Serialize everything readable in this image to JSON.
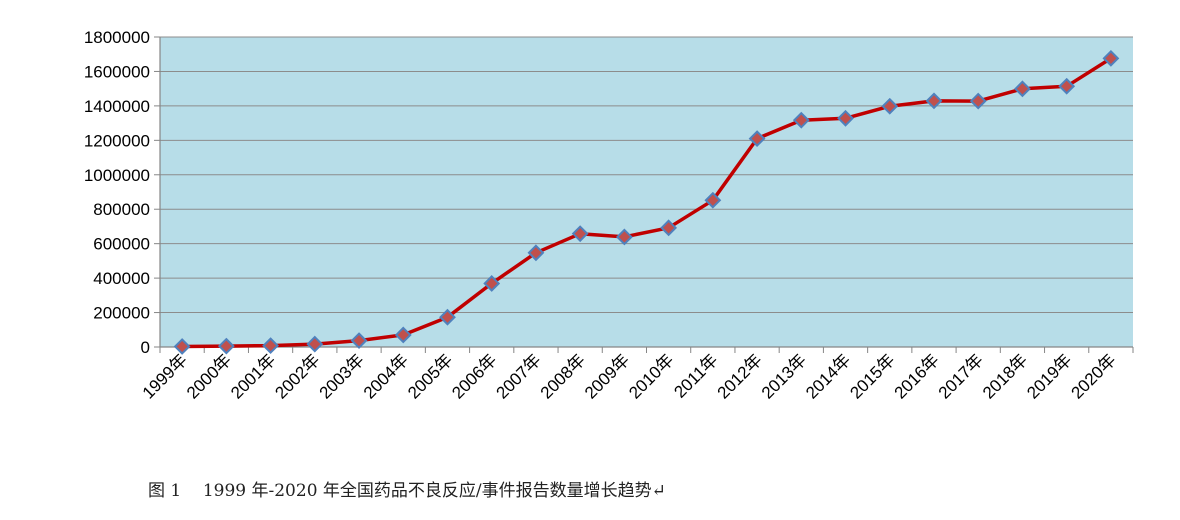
{
  "caption": "图 1    1999 年-2020 年全国药品不良反应/事件报告数量增长趋势↵",
  "chart_data": {
    "type": "line",
    "title": "",
    "xlabel": "",
    "ylabel": "",
    "ylim": [
      0,
      1800000
    ],
    "yticks": [
      0,
      200000,
      400000,
      600000,
      800000,
      1000000,
      1200000,
      1400000,
      1600000,
      1800000
    ],
    "grid": true,
    "legend": "none",
    "plot_background": "#b7dde8",
    "line_color": "#c00000",
    "marker_color": "#c0504d",
    "marker_edge_color": "#4f81bd",
    "categories": [
      "1999年",
      "2000年",
      "2001年",
      "2002年",
      "2003年",
      "2004年",
      "2005年",
      "2006年",
      "2007年",
      "2008年",
      "2009年",
      "2010年",
      "2011年",
      "2012年",
      "2013年",
      "2014年",
      "2015年",
      "2016年",
      "2017年",
      "2018年",
      "2019年",
      "2020年"
    ],
    "series": [
      {
        "name": "",
        "values": [
          3000,
          5000,
          8000,
          17000,
          37000,
          70000,
          173000,
          369000,
          547000,
          658000,
          639000,
          692000,
          852000,
          1210000,
          1317000,
          1328000,
          1398000,
          1429000,
          1428000,
          1499000,
          1514000,
          1676000
        ]
      }
    ]
  }
}
